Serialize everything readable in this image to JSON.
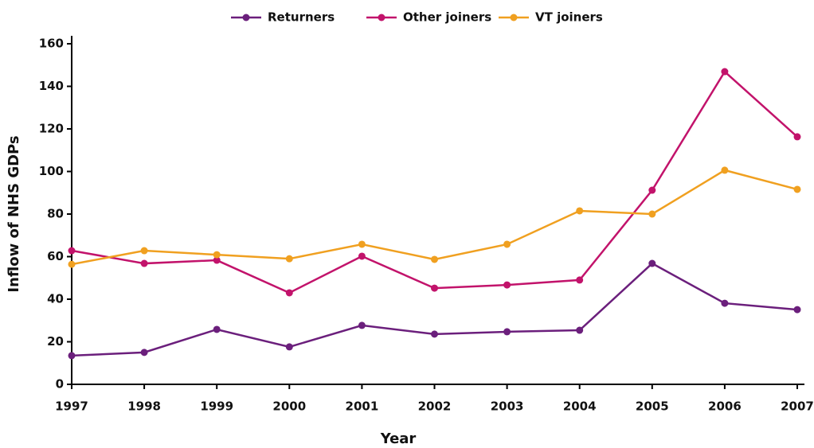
{
  "chart_data": {
    "type": "line",
    "x_label": "Year",
    "y_label": "Inflow of NHS GDPs",
    "x": [
      1997,
      1998,
      1999,
      2000,
      2001,
      2002,
      2003,
      2004,
      2005,
      2006,
      2007
    ],
    "xlim": [
      1997,
      2007
    ],
    "xticks": [
      1997,
      1998,
      1999,
      2000,
      2001,
      2002,
      2003,
      2004,
      2005,
      2006,
      2007
    ],
    "ylim": [
      0,
      160
    ],
    "yticks": [
      0,
      20,
      40,
      60,
      80,
      100,
      120,
      140,
      160
    ],
    "grid": false,
    "legend": "top",
    "series": [
      {
        "name": "Returners",
        "color": "#6b1f7c",
        "values": [
          13.5,
          15,
          25.8,
          17.6,
          27.7,
          23.6,
          24.7,
          25.4,
          56.8,
          38.1,
          35.1
        ]
      },
      {
        "name": "Other joiners",
        "color": "#c2136b",
        "values": [
          62.8,
          56.8,
          58.3,
          43,
          60.2,
          45.2,
          46.7,
          49,
          91.2,
          146.9,
          116.3
        ]
      },
      {
        "name": "VT joiners",
        "color": "#f0a020",
        "values": [
          56.4,
          62.8,
          60.9,
          59,
          65.8,
          58.7,
          65.8,
          81.5,
          80,
          100.6,
          91.6
        ]
      }
    ]
  }
}
